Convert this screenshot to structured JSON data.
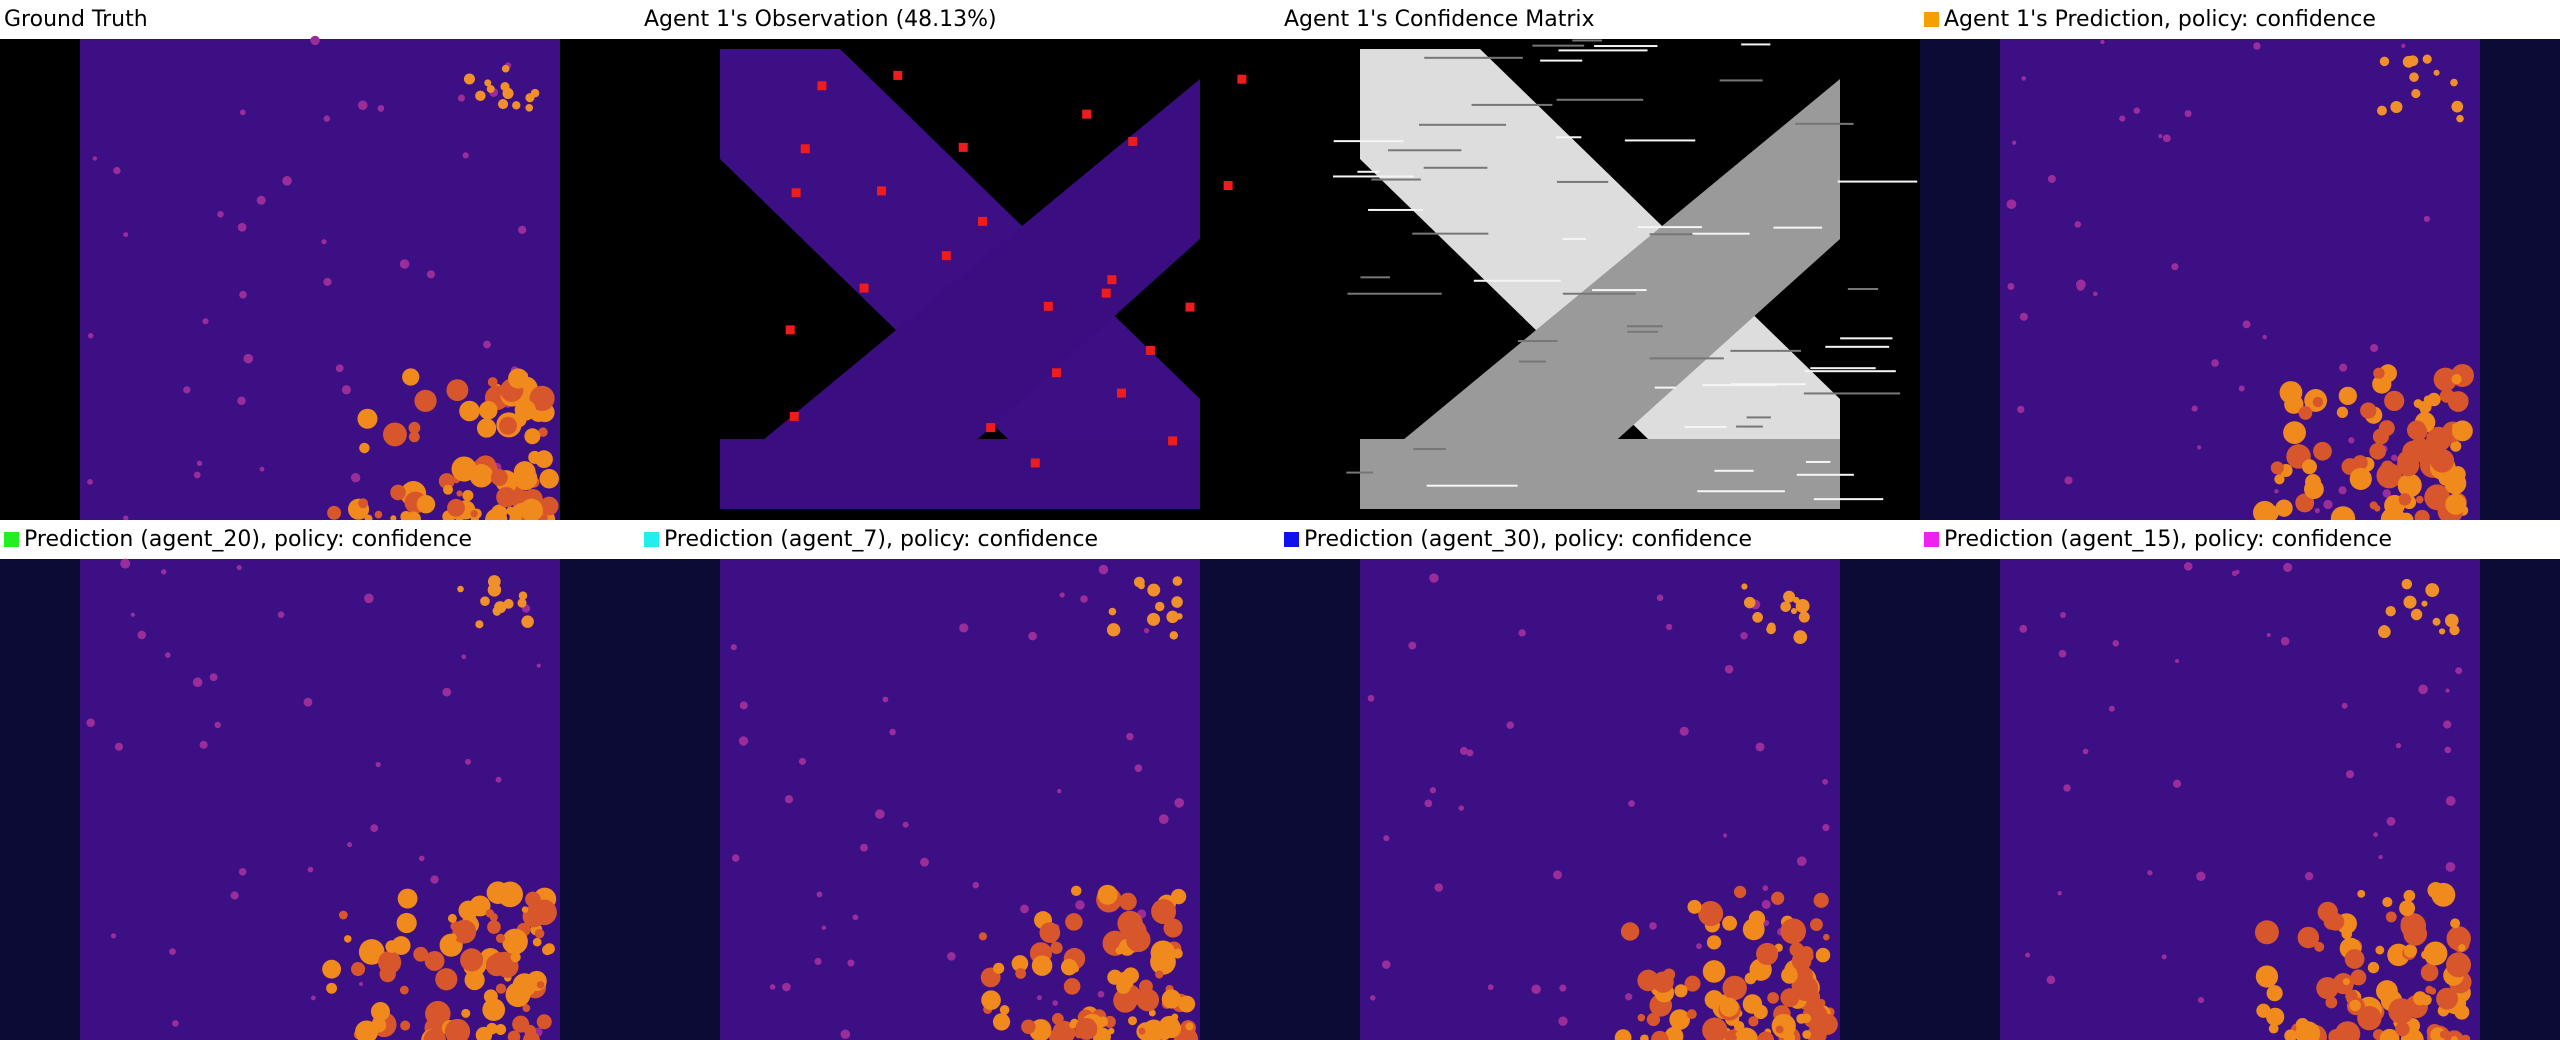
{
  "panels": [
    {
      "title": "Ground Truth"
    },
    {
      "title": "Agent 1's Observation (48.13%)"
    },
    {
      "title": "Agent 1's Confidence Matrix"
    },
    {
      "title": "Agent 1's Prediction, policy: confidence",
      "color": "#f5a000"
    },
    {
      "title": "Prediction (agent_20), policy: confidence",
      "color": "#22ee22"
    },
    {
      "title": "Prediction (agent_7), policy: confidence",
      "color": "#22eeee"
    },
    {
      "title": "Prediction (agent_30), policy: confidence",
      "color": "#1010ee"
    },
    {
      "title": "Prediction (agent_15), policy: confidence",
      "color": "#ee22ee"
    }
  ]
}
